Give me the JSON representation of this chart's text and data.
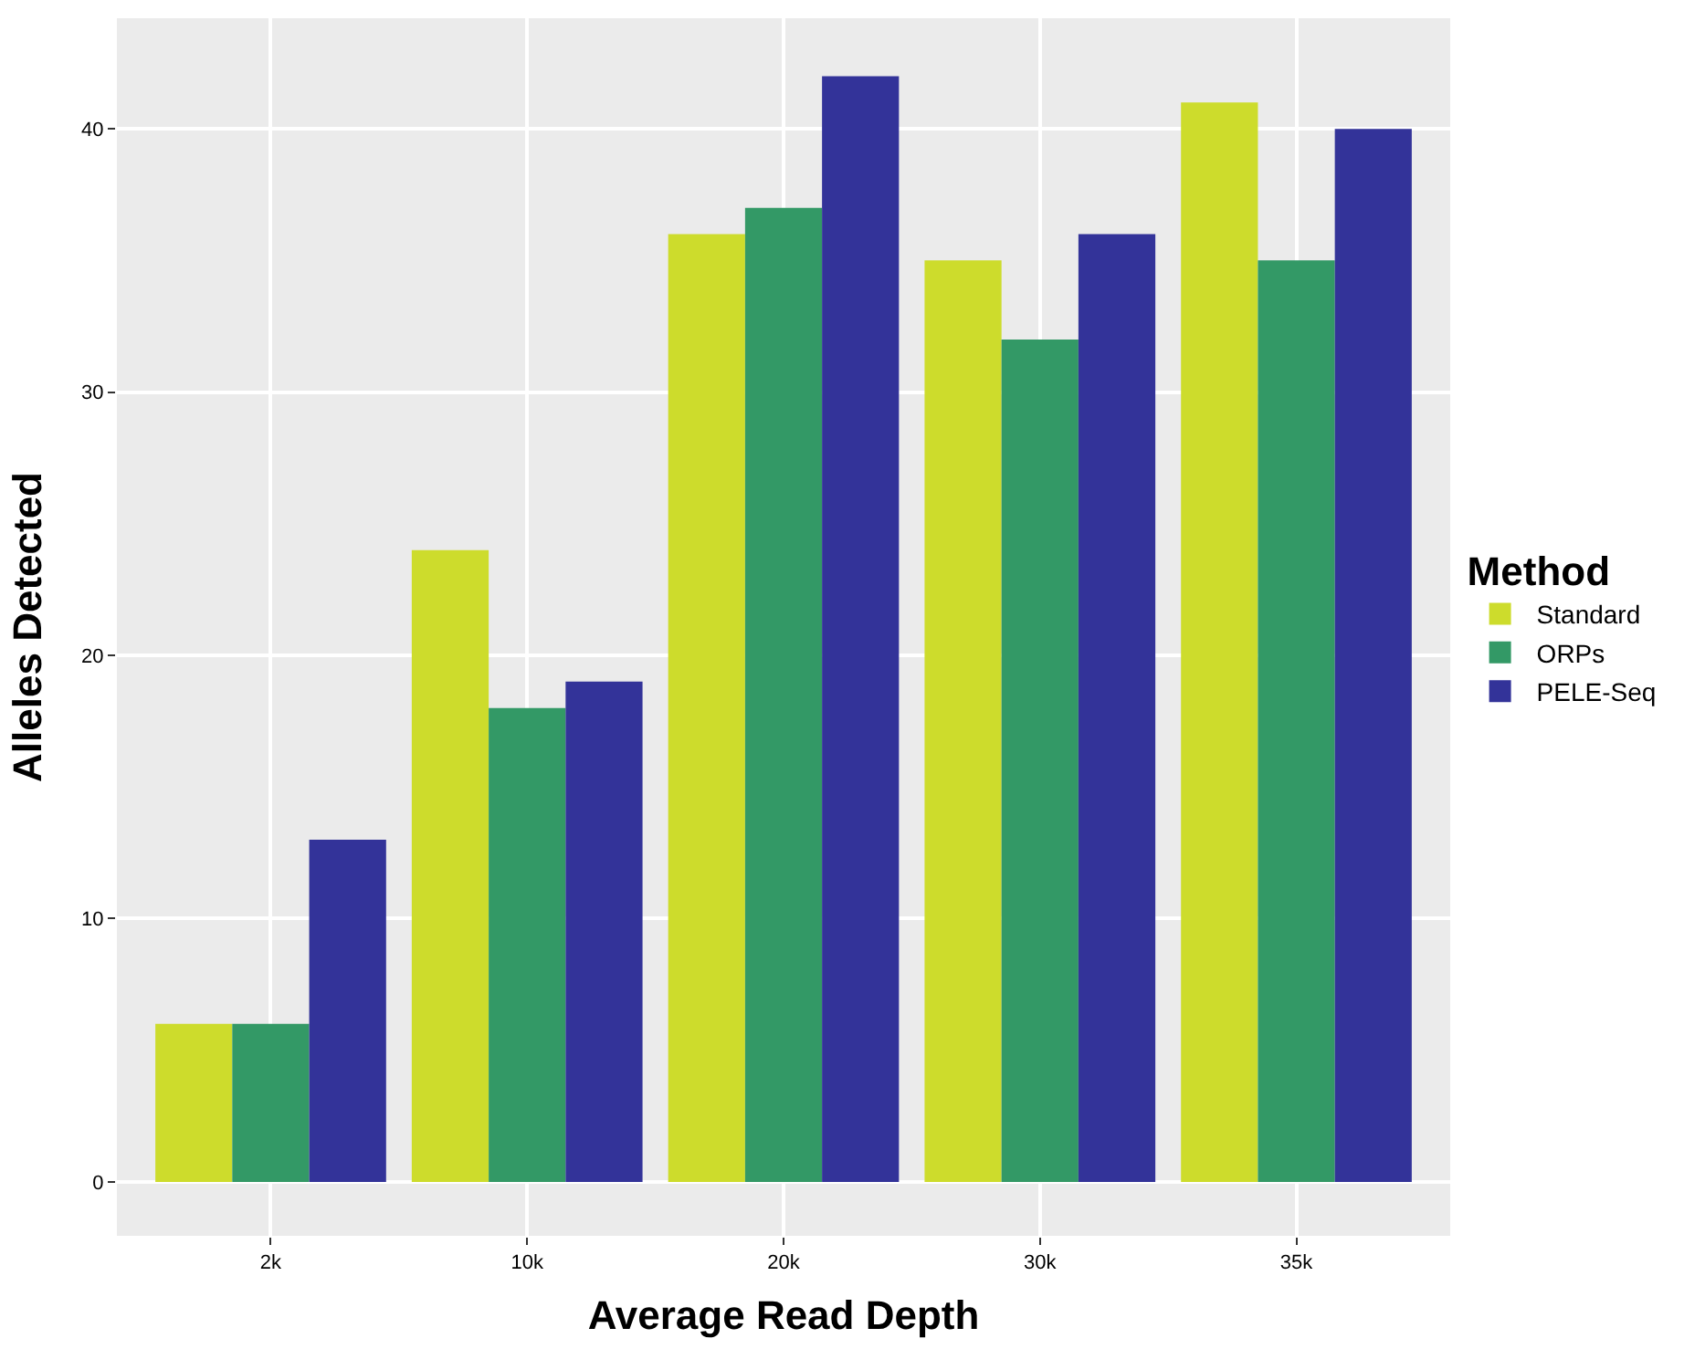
{
  "chart_data": {
    "type": "bar",
    "xlabel": "Average Read Depth",
    "ylabel": "Alleles Detected",
    "legend_title": "Method",
    "categories": [
      "2k",
      "10k",
      "20k",
      "30k",
      "35k"
    ],
    "series": [
      {
        "name": "Standard",
        "color": "#cddc2c",
        "values": [
          6,
          24,
          36,
          35,
          41
        ]
      },
      {
        "name": "ORPs",
        "color": "#339966",
        "values": [
          6,
          18,
          37,
          32,
          35
        ]
      },
      {
        "name": "PELE-Seq",
        "color": "#333399",
        "values": [
          13,
          19,
          42,
          36,
          40
        ]
      }
    ],
    "ylim": [
      -2.05,
      44.2
    ],
    "yticks": [
      0,
      10,
      20,
      30,
      40
    ],
    "grid": true,
    "legend": "right"
  }
}
